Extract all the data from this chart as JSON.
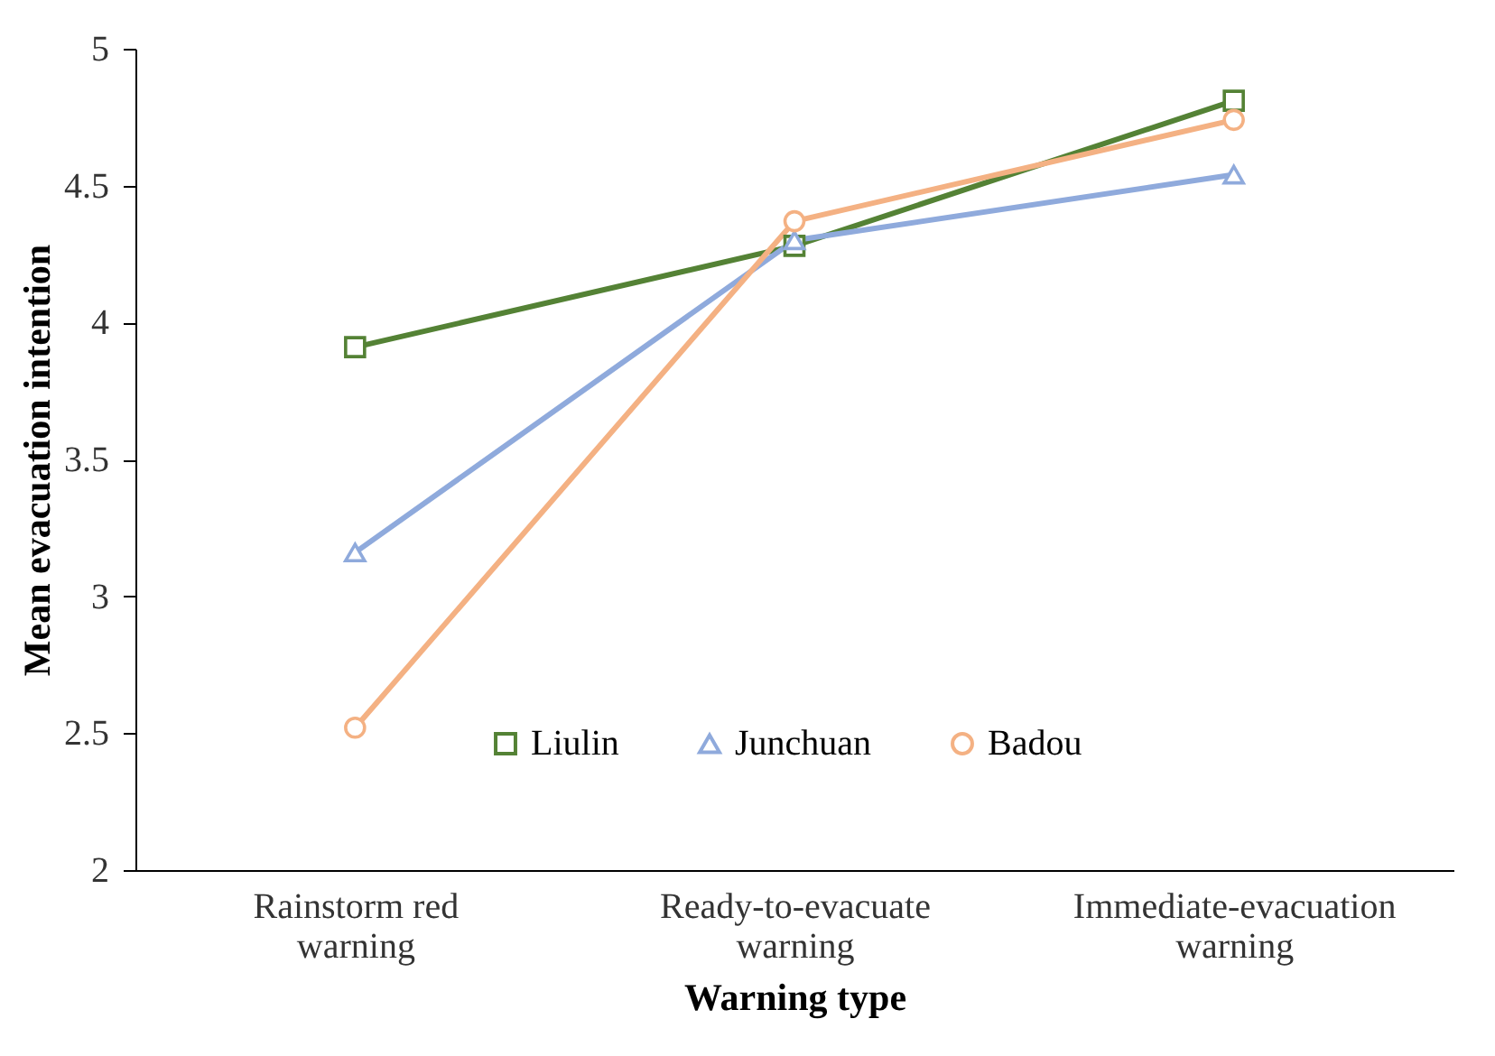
{
  "chart_data": {
    "type": "line",
    "xlabel": "Warning type",
    "ylabel": "Mean evacuation intention",
    "categories": [
      "Rainstorm red warning",
      "Ready-to-evacuate warning",
      "Immediate-evacuation warning"
    ],
    "series": [
      {
        "name": "Liulin",
        "color": "#548235",
        "marker": "square",
        "values": [
          3.91,
          4.28,
          4.81
        ]
      },
      {
        "name": "Junchuan",
        "color": "#8faadc",
        "marker": "triangle",
        "values": [
          3.16,
          4.3,
          4.54
        ]
      },
      {
        "name": "Badou",
        "color": "#f4b183",
        "marker": "circle",
        "values": [
          2.52,
          4.37,
          4.74
        ]
      }
    ],
    "ylim": [
      2,
      5
    ],
    "yticks": [
      2,
      2.5,
      3,
      3.5,
      4,
      4.5,
      5
    ],
    "grid": false,
    "legend": "bottom right",
    "line_style": "solid"
  }
}
